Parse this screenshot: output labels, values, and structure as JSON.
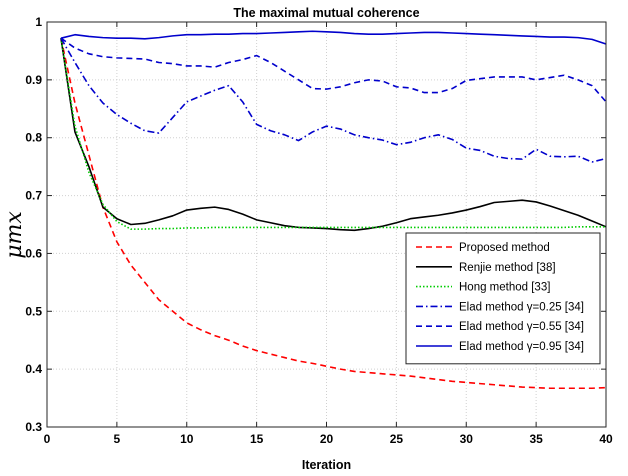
{
  "chart_data": {
    "type": "line",
    "title": "The maximal mutual coherence",
    "xlabel": "Iteration",
    "ylabel": "μmx",
    "xlim": [
      0,
      40
    ],
    "ylim": [
      0.3,
      1
    ],
    "x_ticks": [
      "0",
      "5",
      "10",
      "15",
      "20",
      "25",
      "30",
      "35",
      "40"
    ],
    "y_ticks": [
      "0.3",
      "0.4",
      "0.5",
      "0.6",
      "0.7",
      "0.8",
      "0.9",
      "1"
    ],
    "grid": "dotted",
    "legend_position": "lower-right",
    "x": [
      1,
      2,
      3,
      4,
      5,
      6,
      7,
      8,
      9,
      10,
      11,
      12,
      13,
      14,
      15,
      16,
      17,
      18,
      19,
      20,
      21,
      22,
      23,
      24,
      25,
      26,
      27,
      28,
      29,
      30,
      31,
      32,
      33,
      34,
      35,
      36,
      37,
      38,
      39,
      40
    ],
    "series": [
      {
        "name": "Proposed method",
        "color": "#ff0000",
        "dash": "dashed",
        "values": [
          0.972,
          0.86,
          0.77,
          0.68,
          0.62,
          0.58,
          0.55,
          0.52,
          0.5,
          0.48,
          0.468,
          0.458,
          0.45,
          0.44,
          0.432,
          0.426,
          0.42,
          0.414,
          0.41,
          0.405,
          0.4,
          0.396,
          0.394,
          0.392,
          0.39,
          0.388,
          0.385,
          0.382,
          0.379,
          0.377,
          0.375,
          0.373,
          0.371,
          0.369,
          0.368,
          0.367,
          0.367,
          0.367,
          0.367,
          0.368
        ]
      },
      {
        "name": "Renjie method [38]",
        "color": "#000000",
        "dash": "solid",
        "values": [
          0.972,
          0.81,
          0.75,
          0.68,
          0.66,
          0.65,
          0.652,
          0.658,
          0.665,
          0.675,
          0.678,
          0.68,
          0.676,
          0.668,
          0.658,
          0.653,
          0.648,
          0.645,
          0.644,
          0.643,
          0.641,
          0.64,
          0.643,
          0.647,
          0.653,
          0.66,
          0.663,
          0.666,
          0.67,
          0.675,
          0.681,
          0.688,
          0.69,
          0.692,
          0.689,
          0.682,
          0.674,
          0.666,
          0.656,
          0.646
        ]
      },
      {
        "name": "Hong method [33]",
        "color": "#00cc00",
        "dash": "dotted",
        "values": [
          0.972,
          0.82,
          0.74,
          0.685,
          0.655,
          0.642,
          0.642,
          0.643,
          0.643,
          0.644,
          0.644,
          0.645,
          0.645,
          0.645,
          0.645,
          0.645,
          0.645,
          0.645,
          0.645,
          0.645,
          0.645,
          0.645,
          0.645,
          0.645,
          0.645,
          0.645,
          0.645,
          0.645,
          0.645,
          0.645,
          0.645,
          0.645,
          0.645,
          0.645,
          0.645,
          0.645,
          0.645,
          0.646,
          0.646,
          0.646
        ]
      },
      {
        "name": "Elad method γ=0.25 [34]",
        "color": "#0000cc",
        "dash": "dashdot",
        "values": [
          0.972,
          0.93,
          0.89,
          0.86,
          0.84,
          0.825,
          0.812,
          0.808,
          0.835,
          0.862,
          0.872,
          0.882,
          0.89,
          0.862,
          0.823,
          0.812,
          0.805,
          0.795,
          0.81,
          0.82,
          0.815,
          0.805,
          0.8,
          0.796,
          0.788,
          0.792,
          0.8,
          0.805,
          0.797,
          0.782,
          0.778,
          0.768,
          0.764,
          0.763,
          0.78,
          0.768,
          0.767,
          0.768,
          0.758,
          0.764
        ]
      },
      {
        "name": "Elad method γ=0.55 [34]",
        "color": "#0000cc",
        "dash": "dashed",
        "values": [
          0.972,
          0.955,
          0.945,
          0.94,
          0.938,
          0.937,
          0.936,
          0.93,
          0.928,
          0.924,
          0.924,
          0.922,
          0.93,
          0.935,
          0.942,
          0.93,
          0.915,
          0.9,
          0.885,
          0.884,
          0.888,
          0.895,
          0.9,
          0.898,
          0.888,
          0.886,
          0.878,
          0.878,
          0.885,
          0.899,
          0.902,
          0.905,
          0.905,
          0.905,
          0.9,
          0.904,
          0.908,
          0.9,
          0.89,
          0.862
        ]
      },
      {
        "name": "Elad method γ=0.95 [34]",
        "color": "#0000cc",
        "dash": "solid",
        "values": [
          0.972,
          0.978,
          0.975,
          0.973,
          0.972,
          0.972,
          0.971,
          0.973,
          0.976,
          0.978,
          0.978,
          0.979,
          0.979,
          0.98,
          0.98,
          0.981,
          0.982,
          0.983,
          0.984,
          0.983,
          0.982,
          0.98,
          0.979,
          0.979,
          0.98,
          0.981,
          0.982,
          0.982,
          0.981,
          0.98,
          0.979,
          0.978,
          0.977,
          0.976,
          0.975,
          0.974,
          0.974,
          0.973,
          0.97,
          0.962
        ]
      }
    ]
  }
}
